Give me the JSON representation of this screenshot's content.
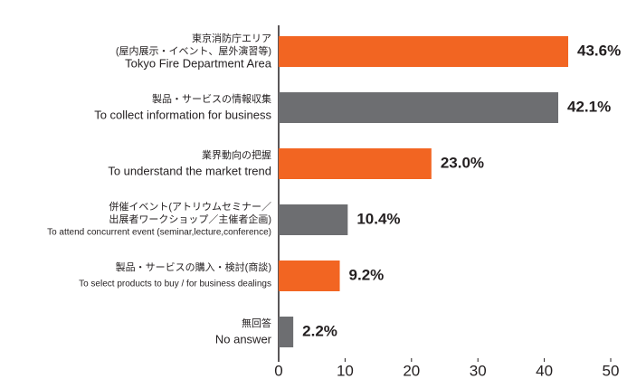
{
  "chart_data": {
    "type": "bar",
    "orientation": "horizontal",
    "categories": [
      [
        "東京消防庁エリア",
        "(屋内展示・イベント、屋外演習等)",
        "Tokyo Fire Department Area"
      ],
      [
        "製品・サービスの情報収集",
        "To collect information for business"
      ],
      [
        "業界動向の把握",
        "To understand the market trend"
      ],
      [
        "併催イベント(アトリウムセミナー／",
        "出展者ワークショップ／主催者企画)",
        "To attend concurrent event (seminar,lecture,conference)"
      ],
      [
        "製品・サービスの購入・検討(商談)",
        "To select products to buy / for business dealings"
      ],
      [
        "無回答",
        "No answer"
      ]
    ],
    "values": [
      43.6,
      42.1,
      23.0,
      10.4,
      9.2,
      2.2
    ],
    "value_labels": [
      "43.6%",
      "42.1%",
      "23.0%",
      "10.4%",
      "9.2%",
      "2.2%"
    ],
    "colors": [
      "#f26522",
      "#6d6e71",
      "#f26522",
      "#6d6e71",
      "#f26522",
      "#6d6e71"
    ],
    "xlim": [
      0,
      50
    ],
    "xticks": [
      0,
      10,
      20,
      30,
      40,
      50
    ],
    "grid": false
  }
}
